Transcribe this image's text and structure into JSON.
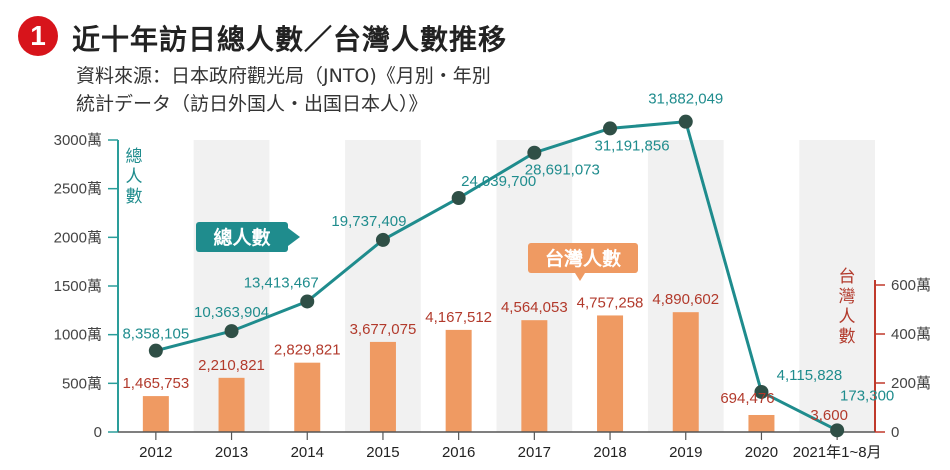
{
  "header": {
    "badge": "1",
    "title": "近十年訪日總人數／台灣人數推移",
    "source_line1": "資料來源：日本政府觀光局（JNTO)《月別・年別",
    "source_line2": "統計データ（訪日外国人・出国日本人）》"
  },
  "chart_data": {
    "type": "bar+line",
    "categories": [
      "2012",
      "2013",
      "2014",
      "2015",
      "2016",
      "2017",
      "2018",
      "2019",
      "2020",
      "2021年1~8月"
    ],
    "series": [
      {
        "name": "總人數",
        "type": "line",
        "axis": "left",
        "values": [
          8358105,
          10363904,
          13413467,
          19737409,
          24039700,
          28691073,
          31191856,
          31882049,
          4115828,
          173300
        ],
        "labels": [
          "8,358,105",
          "10,363,904",
          "13,413,467",
          "19,737,409",
          "24,039,700",
          "28,691,073",
          "31,191,856",
          "31,882,049",
          "4,115,828",
          "173,300"
        ],
        "color": "#1f8c8d"
      },
      {
        "name": "台灣人數",
        "type": "bar",
        "axis": "right",
        "values": [
          1465753,
          2210821,
          2829821,
          3677075,
          4167512,
          4564053,
          4757258,
          4890602,
          694476,
          3600
        ],
        "labels": [
          "1,465,753",
          "2,210,821",
          "2,829,821",
          "3,677,075",
          "4,167,512",
          "4,564,053",
          "4,757,258",
          "4,890,602",
          "694,476",
          "3,600"
        ],
        "color": "#ef9a62"
      }
    ],
    "y_left": {
      "label": "總人數",
      "ticks": [
        0,
        5000000,
        10000000,
        15000000,
        20000000,
        25000000,
        30000000
      ],
      "tick_labels": [
        "0",
        "500萬",
        "1000萬",
        "1500萬",
        "2000萬",
        "2500萬",
        "3000萬"
      ],
      "ylim": [
        0,
        32000000
      ]
    },
    "y_right": {
      "label": "台灣人數",
      "ticks": [
        0,
        2000000,
        4000000,
        6000000
      ],
      "tick_labels": [
        "0",
        "200萬",
        "400萬",
        "600萬"
      ],
      "ylim": [
        0,
        6000000
      ]
    },
    "legend": {
      "total_label": "總人數",
      "taiwan_label": "台灣人數"
    },
    "colors": {
      "line": "#1f8c8d",
      "marker": "#2f4f46",
      "bar": "#ef9a62",
      "stripe": "#f1f1f1",
      "axis_left": "#2a9d9a",
      "axis_right": "#c0392b"
    }
  }
}
